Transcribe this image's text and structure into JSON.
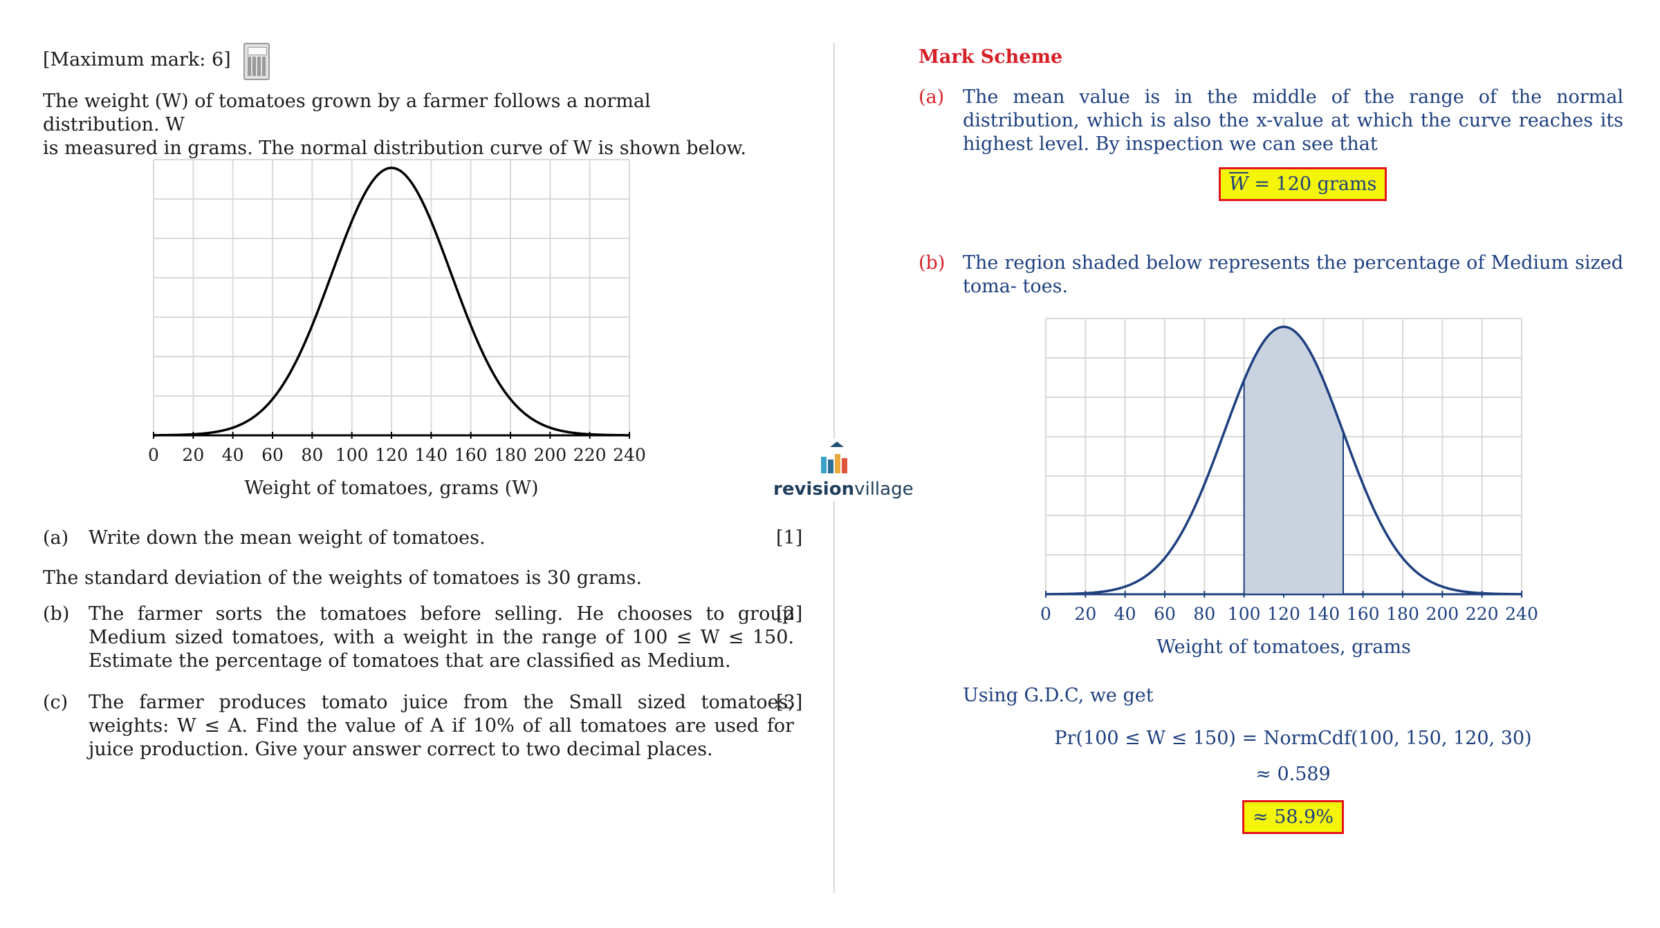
{
  "question": {
    "max_mark": "[Maximum mark: 6]",
    "intro_line1": "The weight (W) of tomatoes grown by a farmer follows a normal distribution. W",
    "intro_line2": "is measured in grams. The normal distribution curve of W is shown below.",
    "parts": [
      {
        "label": "(a)",
        "text": "Write down the mean weight of tomatoes.",
        "marks": "[1]"
      },
      {
        "label": "(b)",
        "text": "The farmer sorts the tomatoes before selling. He chooses to group Medium sized tomatoes, with a weight in the range of 100 ≤ W ≤ 150. Estimate the percentage of tomatoes that are classified as Medium.",
        "marks": "[2]"
      },
      {
        "label": "(c)",
        "text": "The farmer produces tomato juice from the Small sized tomatoes, weights: W ≤ A. Find the value of A if 10% of all tomatoes are used for juice production. Give your answer correct to two decimal places.",
        "marks": "[3]"
      }
    ],
    "std_dev_text": "The standard deviation of the weights of tomatoes is 30 grams."
  },
  "mark_scheme": {
    "title": "Mark Scheme",
    "a_label": "(a)",
    "a_text": "The mean value is in the middle of the range of the normal distribution, which is also the x-value at which the curve reaches its highest level. By inspection we can see that",
    "a_answer_var": "W",
    "a_answer_rest": " = 120 grams",
    "b_label": "(b)",
    "b_text": "The region shaded below represents the percentage of Medium sized toma- toes.",
    "gdc_text": "Using G.D.C, we get",
    "eq1": "Pr(100 ≤ W ≤ 150) = NormCdf(100, 150, 120, 30)",
    "eq2": "≈ 0.589",
    "b_answer": "≈ 58.9%"
  },
  "logo": {
    "brand_bold": "revision",
    "brand_light": "village"
  },
  "colors": {
    "accent_red": "#d61f26",
    "scheme_blue": "#1d3f7e",
    "shade": "#c9d3e0",
    "highlight": "#f4f50b"
  },
  "chart_data": [
    {
      "type": "line",
      "name": "normal distribution curve",
      "xlabel": "Weight of tomatoes, grams (W)",
      "ylabel": "",
      "xticks": [
        "0",
        "20",
        "40",
        "60",
        "80",
        "100",
        "120",
        "140",
        "160",
        "180",
        "200",
        "220",
        "240"
      ],
      "xlim": [
        0,
        240
      ],
      "mean": 120,
      "sd": 30,
      "grid": true
    },
    {
      "type": "area",
      "name": "normal distribution curve with shaded region",
      "xlabel": "Weight of tomatoes, grams",
      "ylabel": "",
      "xticks": [
        "0",
        "20",
        "40",
        "60",
        "80",
        "100",
        "120",
        "140",
        "160",
        "180",
        "200",
        "220",
        "240"
      ],
      "xlim": [
        0,
        240
      ],
      "mean": 120,
      "sd": 30,
      "shaded_range": [
        100,
        150
      ],
      "grid": true
    }
  ]
}
